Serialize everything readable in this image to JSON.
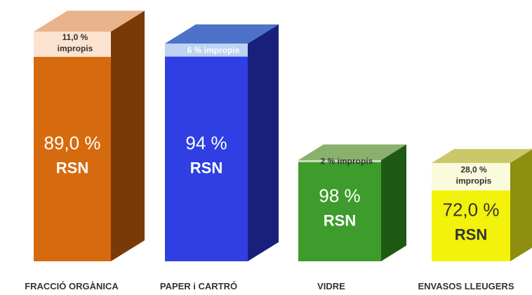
{
  "chart_data": {
    "type": "bar",
    "stacked": true,
    "categories": [
      "FRACCIÓ ORGÀNICA",
      "PAPER i CARTRÓ",
      "VIDRE",
      "ENVASOS LLEUGERS"
    ],
    "series": [
      {
        "name": "RSN",
        "values": [
          89.0,
          94,
          98,
          72.0
        ]
      },
      {
        "name": "impropis",
        "values": [
          11.0,
          6,
          2,
          28.0
        ]
      }
    ],
    "bars": [
      {
        "category": "FRACCIÓ ORGÀNICA",
        "main_pct": "89,0 %",
        "main_name": "RSN",
        "top_label": [
          "11,0 %",
          "impropis"
        ],
        "colors": {
          "front": "#d66a0f",
          "side": "#7a3a08",
          "top": "#e9b48c",
          "cap": "#fbe3cf"
        }
      },
      {
        "category": "PAPER i CARTRÓ",
        "main_pct": "94 %",
        "main_name": "RSN",
        "top_label": [
          "6 % impropis"
        ],
        "colors": {
          "front": "#2f3fe3",
          "side": "#18207c",
          "top": "#4d72c7",
          "cap": "#bcd3f2"
        }
      },
      {
        "category": "VIDRE",
        "main_pct": "98 %",
        "main_name": "RSN",
        "top_label": [
          "2 % impropis"
        ],
        "colors": {
          "front": "#3d9c2c",
          "side": "#1f5a15",
          "top": "#8ab06e",
          "cap": "#cfe1bd"
        }
      },
      {
        "category": "ENVASOS LLEUGERS",
        "main_pct": "72,0 %",
        "main_name": "RSN",
        "top_label": [
          "28,0 %",
          "impropis"
        ],
        "colors": {
          "front": "#f2f20a",
          "side": "#8e8e10",
          "top": "#c9c96a",
          "cap": "#fafadc"
        }
      }
    ]
  }
}
